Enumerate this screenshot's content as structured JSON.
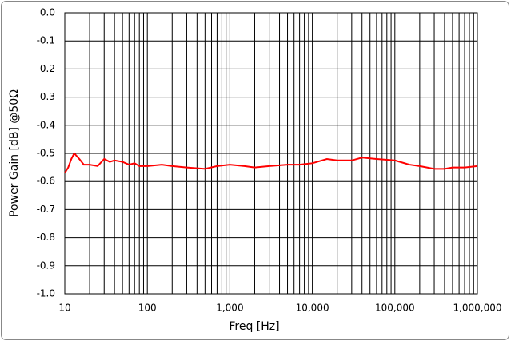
{
  "chart_data": {
    "type": "line",
    "xlabel": "Freq [Hz]",
    "ylabel": "Power Gain [dB] @50Ω",
    "xscale": "log",
    "grid": true,
    "minor_grid": true,
    "xlim": [
      10,
      1000000
    ],
    "xticks": [
      10,
      100,
      {
        "value": 1000,
        "label": "1,000"
      },
      {
        "value": 10000,
        "label": "10,000"
      },
      {
        "value": 100000,
        "label": "100,000"
      },
      {
        "value": 1000000,
        "label": "1,000,000"
      }
    ],
    "ylim": [
      -1,
      0
    ],
    "yticks": [
      {
        "value": 0,
        "label": "0.0"
      },
      -0.1,
      -0.2,
      -0.3,
      -0.4,
      -0.5,
      -0.6,
      -0.7,
      -0.8,
      -0.9,
      {
        "value": -1,
        "label": "-1.0"
      }
    ],
    "series": [
      {
        "color": "#ff0000",
        "x": [
          10,
          11,
          12,
          13,
          14,
          15,
          17,
          20,
          25,
          30,
          35,
          40,
          50,
          60,
          70,
          80,
          100,
          150,
          200,
          300,
          500,
          700,
          1000,
          1500,
          2000,
          3000,
          5000,
          7000,
          10000,
          15000,
          20000,
          30000,
          40000,
          60000,
          100000,
          150000,
          200000,
          300000,
          400000,
          500000,
          700000,
          1000000
        ],
        "values": [
          -0.57,
          -0.55,
          -0.52,
          -0.5,
          -0.51,
          -0.52,
          -0.54,
          -0.54,
          -0.545,
          -0.52,
          -0.53,
          -0.525,
          -0.53,
          -0.54,
          -0.535,
          -0.545,
          -0.545,
          -0.54,
          -0.545,
          -0.55,
          -0.555,
          -0.545,
          -0.54,
          -0.545,
          -0.55,
          -0.545,
          -0.54,
          -0.54,
          -0.535,
          -0.52,
          -0.525,
          -0.525,
          -0.515,
          -0.52,
          -0.525,
          -0.54,
          -0.545,
          -0.555,
          -0.555,
          -0.55,
          -0.55,
          -0.545
        ]
      }
    ]
  }
}
